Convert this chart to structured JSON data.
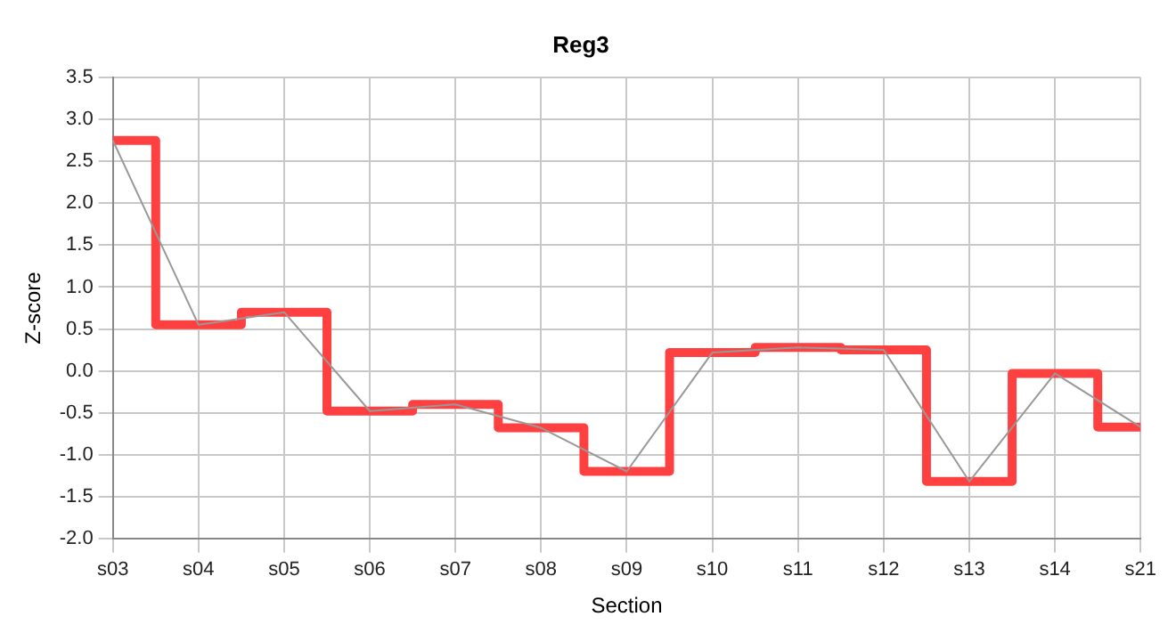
{
  "chart_data": {
    "type": "line",
    "title": "Reg3",
    "xlabel": "Section",
    "ylabel": "Z-score",
    "categories": [
      "s03",
      "s04",
      "s05",
      "s06",
      "s07",
      "s08",
      "s09",
      "s10",
      "s11",
      "s12",
      "s13",
      "s14",
      "s21"
    ],
    "series": [
      {
        "type": "step",
        "color": "#ff4040",
        "values": [
          2.75,
          0.55,
          0.7,
          -0.48,
          -0.4,
          -0.68,
          -1.2,
          0.22,
          0.28,
          0.25,
          -1.32,
          -0.03,
          -0.67
        ]
      },
      {
        "type": "line",
        "color": "#999999",
        "values": [
          2.75,
          0.55,
          0.7,
          -0.48,
          -0.4,
          -0.68,
          -1.2,
          0.22,
          0.28,
          0.25,
          -1.32,
          -0.03,
          -0.67
        ]
      }
    ],
    "ylim": [
      -2,
      3.5
    ],
    "yticks": [
      {
        "value": -2,
        "label": "-2.0"
      },
      {
        "value": -1.5,
        "label": "-1.5"
      },
      {
        "value": -1,
        "label": "-1.0"
      },
      {
        "value": -0.5,
        "label": "-0.5"
      },
      {
        "value": 0,
        "label": "0.0"
      },
      {
        "value": 0.5,
        "label": "0.5"
      },
      {
        "value": 1,
        "label": "1.0"
      },
      {
        "value": 1.5,
        "label": "1.5"
      },
      {
        "value": 2,
        "label": "2.0"
      },
      {
        "value": 2.5,
        "label": "2.5"
      },
      {
        "value": 3,
        "label": "3.0"
      },
      {
        "value": 3.5,
        "label": "3.5"
      }
    ],
    "grid": true,
    "legend": false,
    "marker": "none",
    "line_style": "solid"
  }
}
